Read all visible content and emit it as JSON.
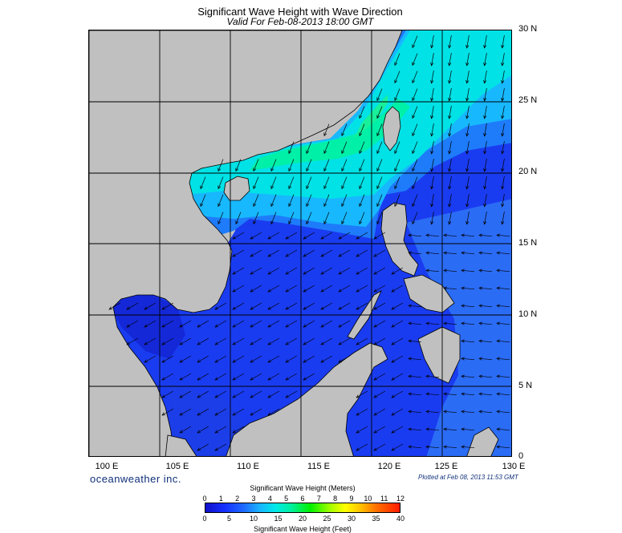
{
  "header": {
    "title": "Significant Wave Height with Wave Direction",
    "subtitle": "Valid For Feb-08-2013 18:00 GMT"
  },
  "map": {
    "lon_range": [
      100,
      130
    ],
    "lat_range": [
      0,
      30
    ],
    "lat_labels": [
      "0",
      "5 N",
      "10 N",
      "15 N",
      "20 N",
      "25 N",
      "30 N"
    ],
    "lon_labels": [
      "100 E",
      "105 E",
      "110 E",
      "115 E",
      "120 E",
      "125 E",
      "130 E"
    ],
    "land_color": "#c0c0c0",
    "grid_color": "#000000",
    "arrow_color": "#000000",
    "wave_direction": "toward southwest"
  },
  "footer": {
    "brand": "oceanweather inc.",
    "plotted": "Plotted at Feb 08, 2013 11:53 GMT"
  },
  "legend": {
    "meters_title": "Significant Wave Height (Meters)",
    "feet_title": "Significant Wave Height (Feet)",
    "meters_ticks": [
      "0",
      "1",
      "2",
      "3",
      "4",
      "5",
      "6",
      "7",
      "8",
      "9",
      "10",
      "11",
      "12"
    ],
    "feet_ticks": [
      "0",
      "5",
      "10",
      "15",
      "20",
      "25",
      "30",
      "35",
      "40"
    ],
    "colors": [
      "#1010c8",
      "#1530ff",
      "#1e6cff",
      "#19b4ff",
      "#00e8e8",
      "#00f0a0",
      "#00f000",
      "#a0ff00",
      "#ffff00",
      "#ffc000",
      "#ff7000",
      "#ff1c00"
    ]
  }
}
